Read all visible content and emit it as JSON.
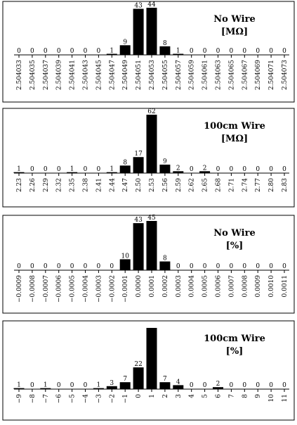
{
  "chart_data": [
    {
      "type": "bar",
      "title": "No Wire",
      "subtitle": "[MΩ]",
      "categories": [
        "2.504033",
        "2.504035",
        "2.504037",
        "2.504039",
        "2.504041",
        "2.504043",
        "2.504045",
        "2.504047",
        "2.504049",
        "2.504051",
        "2.504053",
        "2.504055",
        "2.504057",
        "2.504059",
        "2.504061",
        "2.504063",
        "2.504065",
        "2.504067",
        "2.504069",
        "2.504071",
        "2.504073"
      ],
      "tick_labels": [
        "2.504033",
        "2.504035",
        "2.504037",
        "2.504039",
        "2.504041",
        "2.504043",
        "2.504045",
        "2.504047",
        "2.504049",
        "2.504051",
        "2.504053",
        "2.504055",
        "2.504057",
        "2.504059",
        "2.504061",
        "2.504063",
        "2.504065",
        "2.504067",
        "2.504069",
        "2.504071",
        "2.504073"
      ],
      "values": [
        0,
        0,
        0,
        0,
        0,
        0,
        0,
        1,
        9,
        43,
        44,
        8,
        1,
        0,
        0,
        0,
        0,
        0,
        0,
        0,
        0
      ],
      "data_labels": [
        "0",
        "0",
        "0",
        "0",
        "0",
        "0",
        "0",
        "1",
        "9",
        "43",
        "44",
        "8",
        "1",
        "0",
        "0",
        "0",
        "0",
        "0",
        "0",
        "0",
        "0"
      ],
      "ylim": [
        0,
        44
      ],
      "grid": false
    },
    {
      "type": "bar",
      "title": "100cm Wire",
      "subtitle": "[MΩ]",
      "categories": [
        "2.23",
        "2.26",
        "2.29",
        "2.32",
        "2.35",
        "2.38",
        "2.41",
        "2.44",
        "2.47",
        "2.50",
        "2.53",
        "2.56",
        "2.59",
        "2.62",
        "2.65",
        "2.68",
        "2.71",
        "2.74",
        "2.77",
        "2.80",
        "2.83"
      ],
      "tick_labels": [
        "2.23",
        "2.26",
        "2.29",
        "2.32",
        "2.35",
        "2.38",
        "2.41",
        "2.44",
        "2.47",
        "2.50",
        "2.53",
        "2.56",
        "2.59",
        "2.62",
        "2.65",
        "2.68",
        "2.71",
        "2.74",
        "2.77",
        "2.80",
        "2.83"
      ],
      "values": [
        1,
        0,
        0,
        0,
        1,
        0,
        0,
        1,
        8,
        17,
        62,
        9,
        2,
        0,
        2,
        0,
        0,
        0,
        0,
        0,
        0
      ],
      "data_labels": [
        "1",
        "0",
        "0",
        "0",
        "1",
        "0",
        "0",
        "1",
        "8",
        "17",
        "62",
        "9",
        "2",
        "0",
        "2",
        "0",
        "0",
        "0",
        "0",
        "0",
        "0"
      ],
      "ylim": [
        0,
        62
      ],
      "grid": false
    },
    {
      "type": "bar",
      "title": "No Wire",
      "subtitle": "[%]",
      "categories": [
        "-0.0009",
        "-0.0008",
        "-0.0007",
        "-0.0006",
        "-0.0005",
        "-0.0004",
        "-0.0003",
        "-0.0002",
        "-0.0001",
        "0.0000",
        "0.0001",
        "0.0002",
        "0.0003",
        "0.0004",
        "0.0005",
        "0.0006",
        "0.0007",
        "0.0008",
        "0.0009",
        "0.0010",
        "0.0011"
      ],
      "tick_labels": [
        "−0.0009",
        "−0.0008",
        "−0.0007",
        "−0.0006",
        "−0.0005",
        "−0.0004",
        "−0.0003",
        "−0.0002",
        "−0.0001",
        "0.0000",
        "0.0001",
        "0.0002",
        "0.0003",
        "0.0004",
        "0.0005",
        "0.0006",
        "0.0007",
        "0.0008",
        "0.0009",
        "0.0010",
        "0.0011"
      ],
      "values": [
        0,
        0,
        0,
        0,
        0,
        0,
        0,
        0,
        10,
        43,
        45,
        8,
        0,
        0,
        0,
        0,
        0,
        0,
        0,
        0,
        0
      ],
      "data_labels": [
        "0",
        "0",
        "0",
        "0",
        "0",
        "0",
        "0",
        "0",
        "10",
        "43",
        "45",
        "8",
        "0",
        "0",
        "0",
        "0",
        "0",
        "0",
        "0",
        "0",
        "0"
      ],
      "ylim": [
        0,
        45
      ],
      "grid": false
    },
    {
      "type": "bar",
      "title": "100cm Wire",
      "subtitle": "[%]",
      "categories": [
        "-9",
        "-8",
        "-7",
        "-6",
        "-5",
        "-4",
        "-3",
        "-2",
        "-1",
        "0",
        "1",
        "2",
        "3",
        "4",
        "5",
        "6",
        "7",
        "8",
        "9",
        "10",
        "11"
      ],
      "tick_labels": [
        "−9",
        "−8",
        "−7",
        "−6",
        "−5",
        "−4",
        "−3",
        "−2",
        "−1",
        "0",
        "1",
        "2",
        "3",
        "4",
        "5",
        "6",
        "7",
        "8",
        "9",
        "10",
        "11"
      ],
      "values": [
        1,
        0,
        1,
        0,
        0,
        0,
        1,
        3,
        7,
        22,
        62,
        7,
        4,
        0,
        0,
        2,
        0,
        0,
        0,
        0,
        0
      ],
      "data_labels": [
        "1",
        "0",
        "1",
        "0",
        "0",
        "0",
        "1",
        "3",
        "7",
        "22",
        "",
        "7",
        "4",
        "0",
        "0",
        "2",
        "0",
        "0",
        "0",
        "0",
        "0"
      ],
      "ylim": [
        0,
        62
      ],
      "grid": false
    }
  ]
}
